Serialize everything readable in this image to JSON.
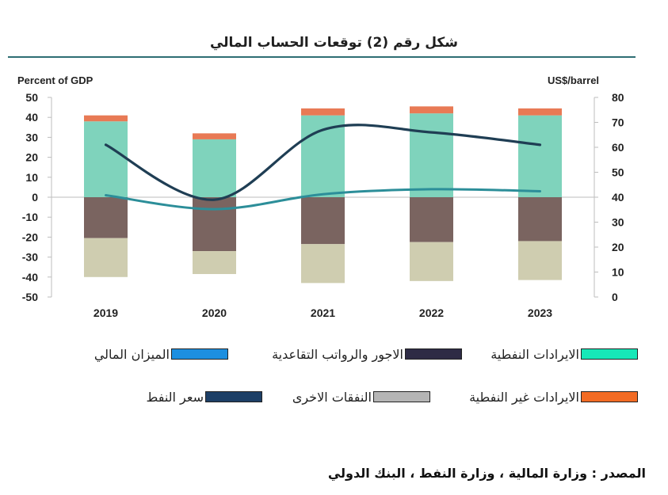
{
  "title": "شكل رقم (2) توقعات الحساب المالي",
  "source": "المصدر : وزارة المالية ، وزارة النفط ، البنك الدولي",
  "chart_data": {
    "type": "bar",
    "left_axis_label": "Percent of GDP",
    "right_axis_label": "US$/barrel",
    "categories": [
      "2019",
      "2020",
      "2021",
      "2022",
      "2023"
    ],
    "y_left": {
      "min": -50,
      "max": 50,
      "ticks": [
        "50",
        "40",
        "30",
        "20",
        "10",
        "0",
        "-10",
        "-20",
        "-30",
        "-40",
        "-50"
      ]
    },
    "y_right": {
      "min": 0,
      "max": 80,
      "ticks": [
        "80",
        "70",
        "60",
        "50",
        "40",
        "30",
        "20",
        "10",
        "0"
      ]
    },
    "series": [
      {
        "name": "الايرادات النفطية",
        "kind": "stacked-bar",
        "axis": "left",
        "color": "#7fd3bc",
        "values": [
          38,
          29,
          41,
          42,
          41
        ]
      },
      {
        "name": "الايرادات غير النفطية",
        "kind": "stacked-bar",
        "axis": "left",
        "color": "#e87a55",
        "values": [
          3,
          3,
          3.5,
          3.5,
          3.5
        ]
      },
      {
        "name": "الاجور والرواتب التقاعدية",
        "kind": "stacked-bar",
        "axis": "left",
        "color": "#7a6460",
        "values": [
          -20.5,
          -27,
          -23.5,
          -22.5,
          -22
        ]
      },
      {
        "name": "النفقات الاخرى",
        "kind": "stacked-bar",
        "axis": "left",
        "color": "#cfcdb0",
        "values": [
          -19.5,
          -11.5,
          -19.5,
          -19.5,
          -19.5
        ]
      },
      {
        "name": "الميزان المالي",
        "kind": "line",
        "axis": "left",
        "color": "#2c8e99",
        "values": [
          1,
          -6,
          1.5,
          4,
          3
        ]
      },
      {
        "name": "سعر النفط",
        "kind": "line",
        "axis": "right",
        "color": "#1f3e54",
        "values": [
          61,
          39,
          67,
          66,
          61
        ]
      }
    ],
    "legend": [
      {
        "label": "الايرادات النفطية",
        "color": "#17e8b8"
      },
      {
        "label": "الاجور والرواتب التقاعدية",
        "color": "#2e2b45"
      },
      {
        "label": "الميزان المالي",
        "color": "#1d8fe0"
      },
      {
        "label": "الايرادات غير النفطية",
        "color": "#f26b24"
      },
      {
        "label": "النفقات الاخرى",
        "color": "#b5b5b5"
      },
      {
        "label": "سعر النفط",
        "color": "#1d3f66"
      }
    ]
  }
}
